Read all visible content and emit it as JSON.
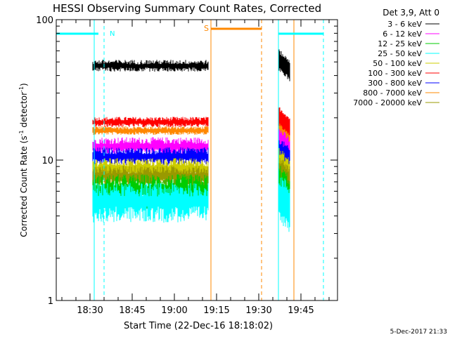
{
  "chart_data": {
    "type": "line",
    "title": "HESSI Observing Summary Count Rates, Corrected",
    "xlabel": "Start Time (22-Dec-16 18:18:02)",
    "ylabel_main": "Corrected Count Rate (s",
    "ylabel_sup": "-1",
    "ylabel_mid": " detector",
    "ylabel_end": ")",
    "y_scale": "log",
    "ylim": [
      1,
      100
    ],
    "y_ticks": [
      {
        "value": 1,
        "label": "1"
      },
      {
        "value": 10,
        "label": "10"
      },
      {
        "value": 100,
        "label": "100"
      }
    ],
    "x_range_minutes": [
      "18:18",
      "19:58"
    ],
    "x_ticks": [
      "18:30",
      "18:45",
      "19:00",
      "19:15",
      "19:30",
      "19:45"
    ],
    "x_tick_minutes": [
      30,
      45,
      60,
      75,
      90,
      105
    ],
    "x_range_start": 18,
    "x_range_end": 118,
    "legend_title": "Det 3,9, Att 0",
    "legend_placement": "right",
    "series": [
      {
        "name": "3 - 6 keV",
        "color": "#000000",
        "level": 48,
        "noise": 0.08
      },
      {
        "name": "6 - 12 keV",
        "color": "#ff00ff",
        "level": 13,
        "noise": 0.12
      },
      {
        "name": "12 - 25 keV",
        "color": "#00cc00",
        "level": 6.5,
        "noise": 0.22
      },
      {
        "name": "25 - 50 keV",
        "color": "#00ffff",
        "level": 5.5,
        "noise": 0.25
      },
      {
        "name": "50 - 100 keV",
        "color": "#cccc00",
        "level": 9,
        "noise": 0.15
      },
      {
        "name": "100 - 300 keV",
        "color": "#ff0000",
        "level": 19,
        "noise": 0.07
      },
      {
        "name": "300 - 800 keV",
        "color": "#0000ff",
        "level": 11,
        "noise": 0.12
      },
      {
        "name": "800 - 7000 keV",
        "color": "#ff8800",
        "level": 16.5,
        "noise": 0.06
      },
      {
        "name": "7000 - 20000 keV",
        "color": "#999900",
        "level": 8,
        "noise": 0.14
      }
    ],
    "segments_minutes": [
      [
        31,
        72
      ],
      [
        97,
        101
      ]
    ],
    "annotations": {
      "night_label": "N",
      "saa_label": "S",
      "night_color": "#00ffff",
      "saa_color": "#ff8800",
      "night_bars": [
        [
          18,
          33
        ],
        [
          97,
          113
        ]
      ],
      "saa_bar": [
        73,
        91
      ],
      "cyan_solid": [
        18,
        31.5,
        97
      ],
      "cyan_dashed": [
        35,
        113
      ],
      "orange_solid": [
        73,
        102.5
      ],
      "orange_dashed": [
        91
      ]
    },
    "footer": "5-Dec-2017 21:33"
  }
}
